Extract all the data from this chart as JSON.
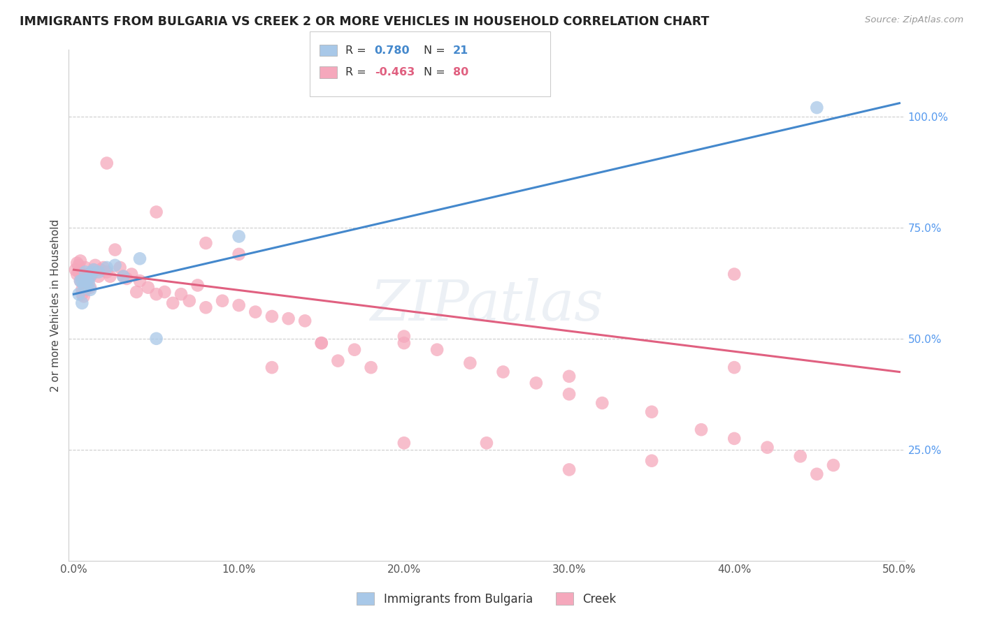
{
  "title": "IMMIGRANTS FROM BULGARIA VS CREEK 2 OR MORE VEHICLES IN HOUSEHOLD CORRELATION CHART",
  "source": "Source: ZipAtlas.com",
  "ylabel": "2 or more Vehicles in Household",
  "R1": 0.78,
  "N1": 21,
  "R2": -0.463,
  "N2": 80,
  "color_bulgaria": "#a8c8e8",
  "color_creek": "#f5a8bc",
  "color_line_bulgaria": "#4488cc",
  "color_line_creek": "#e06080",
  "watermark": "ZIPatlas",
  "legend_label1": "Immigrants from Bulgaria",
  "legend_label2": "Creek",
  "xlim": [
    -0.003,
    0.503
  ],
  "ylim": [
    0.0,
    1.15
  ],
  "xticks": [
    0.0,
    0.1,
    0.2,
    0.3,
    0.4,
    0.5
  ],
  "xtick_labels": [
    "0.0%",
    "10.0%",
    "20.0%",
    "30.0%",
    "40.0%",
    "50.0%"
  ],
  "yticks_right": [
    0.25,
    0.5,
    0.75,
    1.0
  ],
  "ytick_labels_right": [
    "25.0%",
    "50.0%",
    "75.0%",
    "100.0%"
  ],
  "bul_line_x": [
    0.0,
    0.5
  ],
  "bul_line_y": [
    0.6,
    1.03
  ],
  "creek_line_x": [
    0.0,
    0.5
  ],
  "creek_line_y": [
    0.655,
    0.425
  ],
  "bul_x": [
    0.003,
    0.004,
    0.005,
    0.005,
    0.006,
    0.007,
    0.007,
    0.008,
    0.009,
    0.01,
    0.01,
    0.011,
    0.012,
    0.015,
    0.02,
    0.025,
    0.03,
    0.04,
    0.05,
    0.1,
    0.45
  ],
  "bul_y": [
    0.6,
    0.63,
    0.58,
    0.63,
    0.62,
    0.65,
    0.62,
    0.63,
    0.625,
    0.61,
    0.64,
    0.65,
    0.655,
    0.65,
    0.66,
    0.665,
    0.64,
    0.68,
    0.5,
    0.73,
    1.02
  ],
  "creek_x": [
    0.001,
    0.002,
    0.002,
    0.003,
    0.003,
    0.004,
    0.004,
    0.005,
    0.005,
    0.005,
    0.006,
    0.006,
    0.007,
    0.007,
    0.008,
    0.008,
    0.009,
    0.01,
    0.01,
    0.011,
    0.012,
    0.013,
    0.015,
    0.016,
    0.018,
    0.02,
    0.022,
    0.025,
    0.028,
    0.03,
    0.032,
    0.035,
    0.038,
    0.04,
    0.045,
    0.05,
    0.055,
    0.06,
    0.065,
    0.07,
    0.075,
    0.08,
    0.09,
    0.1,
    0.11,
    0.12,
    0.13,
    0.14,
    0.15,
    0.16,
    0.17,
    0.18,
    0.2,
    0.22,
    0.24,
    0.26,
    0.28,
    0.3,
    0.32,
    0.35,
    0.38,
    0.4,
    0.42,
    0.44,
    0.46,
    0.02,
    0.05,
    0.08,
    0.12,
    0.2,
    0.25,
    0.3,
    0.35,
    0.4,
    0.45,
    0.1,
    0.15,
    0.2,
    0.3,
    0.4
  ],
  "creek_y": [
    0.655,
    0.645,
    0.67,
    0.65,
    0.665,
    0.63,
    0.675,
    0.61,
    0.64,
    0.6,
    0.645,
    0.595,
    0.66,
    0.61,
    0.645,
    0.615,
    0.635,
    0.645,
    0.615,
    0.645,
    0.655,
    0.665,
    0.64,
    0.655,
    0.66,
    0.65,
    0.64,
    0.7,
    0.66,
    0.64,
    0.635,
    0.645,
    0.605,
    0.63,
    0.615,
    0.6,
    0.605,
    0.58,
    0.6,
    0.585,
    0.62,
    0.57,
    0.585,
    0.575,
    0.56,
    0.55,
    0.545,
    0.54,
    0.49,
    0.45,
    0.475,
    0.435,
    0.505,
    0.475,
    0.445,
    0.425,
    0.4,
    0.375,
    0.355,
    0.335,
    0.295,
    0.275,
    0.255,
    0.235,
    0.215,
    0.895,
    0.785,
    0.715,
    0.435,
    0.265,
    0.265,
    0.205,
    0.225,
    0.435,
    0.195,
    0.69,
    0.49,
    0.49,
    0.415,
    0.645
  ]
}
